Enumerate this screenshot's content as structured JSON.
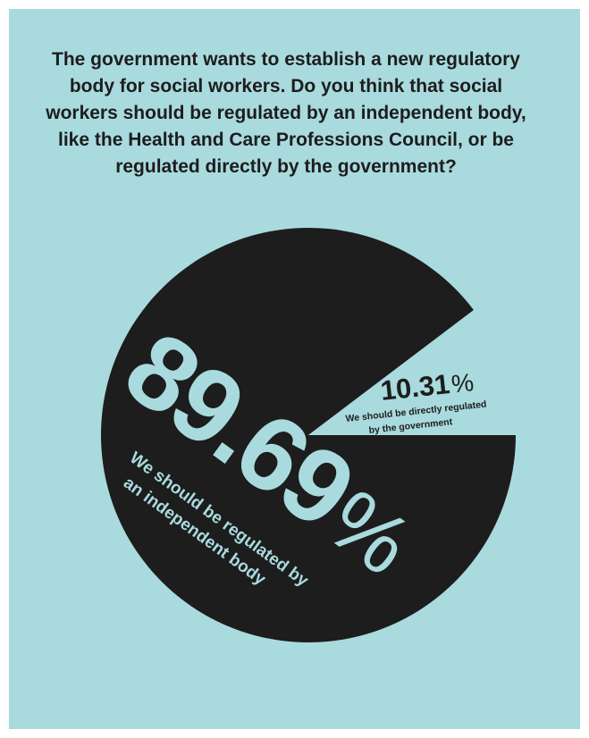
{
  "question": "The government wants to establish a new regulatory body for social workers. Do you think that social workers should be regulated by an independent body, like the Health and Care Professions Council, or be regulated directly by the government?",
  "colors": {
    "background": "#a9dade",
    "independent_slice": "#1d1d1d",
    "government_slice": "#a9dade",
    "text_on_dark": "#a9dade",
    "text_on_light": "#1d1d1d"
  },
  "chart_data": {
    "type": "pie",
    "title": "",
    "slices": [
      {
        "label_line1": "We should be regulated by",
        "label_line2": "an independent body",
        "value": 89.69,
        "value_text": "89.69",
        "unit": "%"
      },
      {
        "label_line1": "We should be directly regulated",
        "label_line2": "by the government",
        "value": 10.31,
        "value_text": "10.31",
        "unit": "%"
      }
    ]
  }
}
